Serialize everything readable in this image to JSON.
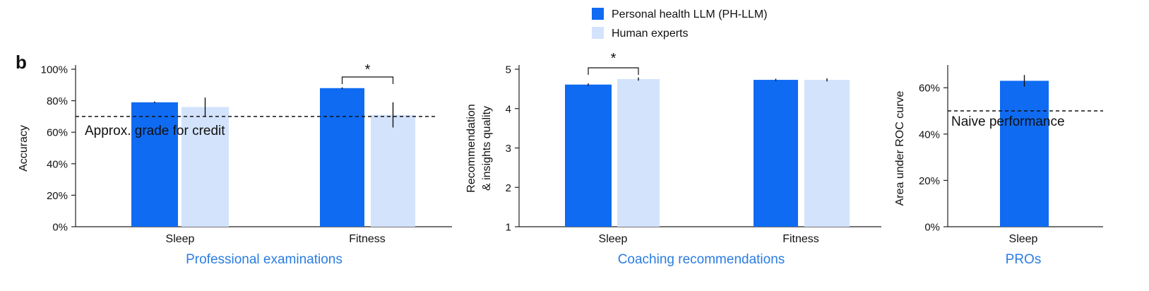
{
  "panel_label": "b",
  "legend": [
    {
      "label": "Personal health LLM (PH-LLM)",
      "color": "#0f6bf2"
    },
    {
      "label": "Human experts",
      "color": "#d3e3fc"
    }
  ],
  "colors": {
    "llm": "#0f6bf2",
    "human": "#d3e3fc",
    "group_title": "#2a7de1",
    "axis": "#222222"
  },
  "chart_data": [
    {
      "type": "bar",
      "categories": [
        "Sleep",
        "Fitness"
      ],
      "series": [
        {
          "name": "Personal health LLM (PH-LLM)",
          "values": [
            79,
            88
          ],
          "errors": [
            0.5,
            0.5
          ]
        },
        {
          "name": "Human experts",
          "values": [
            76,
            71
          ],
          "errors": [
            6,
            8
          ]
        }
      ],
      "ylabel": "Accuracy",
      "yticks": [
        0,
        20,
        40,
        60,
        80,
        100
      ],
      "ytick_labels": [
        "0%",
        "20%",
        "40%",
        "60%",
        "80%",
        "100%"
      ],
      "ylim": [
        0,
        100
      ],
      "reference_line": {
        "value": 70,
        "label": "Approx. grade for credit"
      },
      "significance": {
        "category": "Fitness",
        "marker": "*"
      },
      "group_title": "Professional examinations"
    },
    {
      "type": "bar",
      "categories": [
        "Sleep",
        "Fitness"
      ],
      "series": [
        {
          "name": "Personal health LLM (PH-LLM)",
          "values": [
            4.61,
            4.73
          ],
          "errors": [
            0.03,
            0.03
          ]
        },
        {
          "name": "Human experts",
          "values": [
            4.75,
            4.73
          ],
          "errors": [
            0.04,
            0.04
          ]
        }
      ],
      "ylabel_lines": [
        "Recommendation",
        "& insights quality"
      ],
      "yticks": [
        1,
        2,
        3,
        4,
        5
      ],
      "ytick_labels": [
        "1",
        "2",
        "3",
        "4",
        "5"
      ],
      "ylim": [
        1,
        5
      ],
      "significance": {
        "category": "Sleep",
        "marker": "*"
      },
      "group_title": "Coaching recommendations"
    },
    {
      "type": "bar",
      "categories": [
        "Sleep"
      ],
      "series": [
        {
          "name": "Personal health LLM (PH-LLM)",
          "values": [
            63
          ],
          "errors": [
            2.5
          ]
        }
      ],
      "ylabel": "Area under ROC curve",
      "yticks": [
        0,
        20,
        40,
        60
      ],
      "ytick_labels": [
        "0%",
        "20%",
        "40%",
        "60%"
      ],
      "ylim": [
        0,
        68
      ],
      "reference_line": {
        "value": 50,
        "label": "Naive performance"
      },
      "group_title": "PROs"
    }
  ]
}
